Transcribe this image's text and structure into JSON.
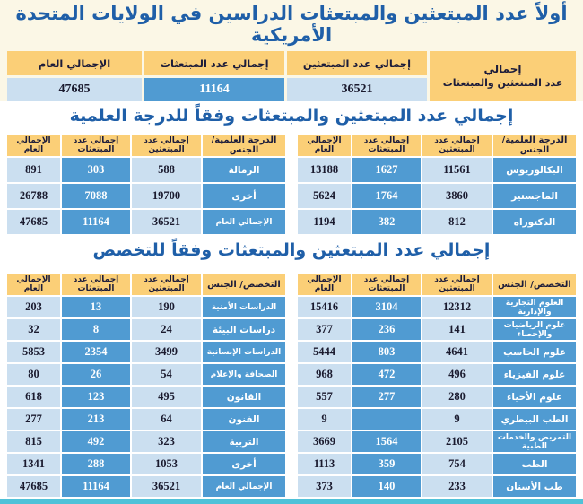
{
  "colors": {
    "header_bg": "#FBCF77",
    "light_cell": "#CBDFF0",
    "dark_cell": "#509BD2",
    "title_blue": "#1F5FA8",
    "cream_band": "#FBF7E6",
    "bottom_strip": "#4FC2D8"
  },
  "titles": {
    "main_line1": "أولاً عدد المبتعثين والمبتعثات الدراسين في الولايات المتحدة",
    "main_line2": "الأمريكية",
    "degree": "إجمالي عدد المبتعثين والمبتعثات وفقاً للدرجة العلمية",
    "major": "إجمالي عدد المبتعثين والمبتعثات  وفقاً للتخصص"
  },
  "summary_table": {
    "group_label_line1": "إجمالي",
    "group_label_line2": "عدد المبتعثين والمبتعثات",
    "col_headers": {
      "male": "إجمالي عدد المبتعثين",
      "female": "إجمالي عدد المبتعثات",
      "total": "الإجمالي العام"
    },
    "values": {
      "male": "36521",
      "female": "11164",
      "total": "47685"
    }
  },
  "degree_section": {
    "col_headers": {
      "label": "الدرجة العلمية/ الجنس",
      "male": "إجمالي عدد المبتعثين",
      "female": "إجمالي عدد المبتعثات",
      "total": "الإجمالي العام"
    },
    "right_rows": [
      {
        "label": "البكالوريوس",
        "male": "11561",
        "female": "1627",
        "total": "13188"
      },
      {
        "label": "الماجستير",
        "male": "3860",
        "female": "1764",
        "total": "5624"
      },
      {
        "label": "الدكتوراه",
        "male": "812",
        "female": "382",
        "total": "1194"
      }
    ],
    "left_rows": [
      {
        "label": "الزمالة",
        "male": "588",
        "female": "303",
        "total": "891"
      },
      {
        "label": "أخرى",
        "male": "19700",
        "female": "7088",
        "total": "26788"
      },
      {
        "label": "الإجمالي العام",
        "male": "36521",
        "female": "11164",
        "total": "47685"
      }
    ]
  },
  "major_section": {
    "col_headers": {
      "label": "التخصص/ الجنس",
      "male": "إجمالي عدد المبتعثين",
      "female": "إجمالي عدد المبتعثات",
      "total": "الإجمالي العام"
    },
    "right_rows": [
      {
        "label": "العلوم التجارية والإدارية",
        "male": "12312",
        "female": "3104",
        "total": "15416"
      },
      {
        "label": "علوم الرياضيات والإحصاء",
        "male": "141",
        "female": "236",
        "total": "377"
      },
      {
        "label": "علوم الحاسب",
        "male": "4641",
        "female": "803",
        "total": "5444"
      },
      {
        "label": "علوم الفيزياء",
        "male": "496",
        "female": "472",
        "total": "968"
      },
      {
        "label": "علوم الأحياء",
        "male": "280",
        "female": "277",
        "total": "557"
      },
      {
        "label": "الطب البيطري",
        "male": "9",
        "female": "",
        "total": "9"
      },
      {
        "label": "التمريض والخدمات الطبية",
        "male": "2105",
        "female": "1564",
        "total": "3669"
      },
      {
        "label": "الطب",
        "male": "754",
        "female": "359",
        "total": "1113"
      },
      {
        "label": "طب الأسنان",
        "male": "233",
        "female": "140",
        "total": "373"
      }
    ],
    "left_rows": [
      {
        "label": "الدراسات الأمنية",
        "male": "190",
        "female": "13",
        "total": "203"
      },
      {
        "label": "دراسات البيئة",
        "male": "24",
        "female": "8",
        "total": "32"
      },
      {
        "label": "الدراسات الإنسانية",
        "male": "3499",
        "female": "2354",
        "total": "5853"
      },
      {
        "label": "الصحافة والإعلام",
        "male": "54",
        "female": "26",
        "total": "80"
      },
      {
        "label": "القانون",
        "male": "495",
        "female": "123",
        "total": "618"
      },
      {
        "label": "الفنون",
        "male": "64",
        "female": "213",
        "total": "277"
      },
      {
        "label": "التربية",
        "male": "323",
        "female": "492",
        "total": "815"
      },
      {
        "label": "أخرى",
        "male": "1053",
        "female": "288",
        "total": "1341"
      },
      {
        "label": "الإجمالي العام",
        "male": "36521",
        "female": "11164",
        "total": "47685"
      }
    ]
  }
}
